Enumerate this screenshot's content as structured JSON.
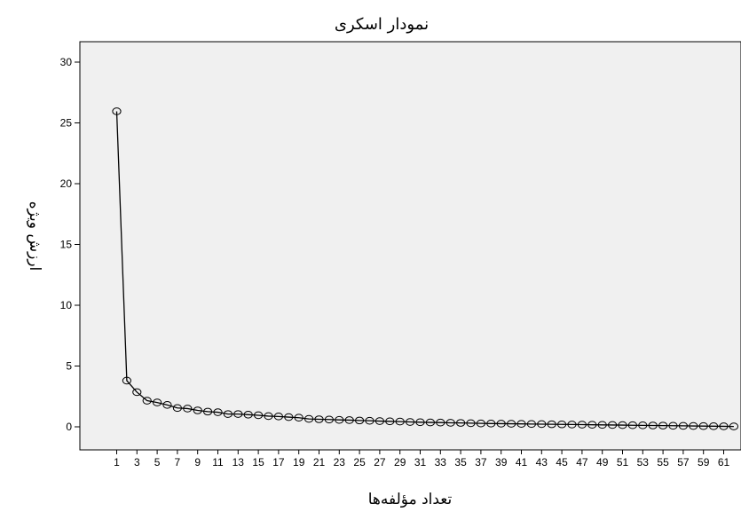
{
  "chart_data": {
    "type": "line",
    "title": "نمودار اسکری",
    "xlabel": "تعداد مؤلفه‌ها",
    "ylabel": "ارزش ویژه",
    "xlim": [
      0,
      63
    ],
    "ylim": [
      -1,
      31
    ],
    "x_ticks": [
      1,
      3,
      5,
      7,
      9,
      11,
      13,
      15,
      17,
      19,
      21,
      23,
      25,
      27,
      29,
      31,
      33,
      35,
      37,
      39,
      41,
      43,
      45,
      47,
      49,
      51,
      53,
      55,
      57,
      59,
      61
    ],
    "y_ticks": [
      0,
      5,
      10,
      15,
      20,
      25,
      30
    ],
    "grid": false,
    "plot_background": "#f0f0f0",
    "line_color": "#000000",
    "series": [
      {
        "x": [
          1,
          2,
          3,
          4,
          5,
          6,
          7,
          8,
          9,
          10,
          11,
          12,
          13,
          14,
          15,
          16,
          17,
          18,
          19,
          20,
          21,
          22,
          23,
          24,
          25,
          26,
          27,
          28,
          29,
          30,
          31,
          32,
          33,
          34,
          35,
          36,
          37,
          38,
          39,
          40,
          41,
          42,
          43,
          44,
          45,
          46,
          47,
          48,
          49,
          50,
          51,
          52,
          53,
          54,
          55,
          56,
          57,
          58,
          59,
          60,
          61,
          62
        ],
        "values": [
          25.95,
          3.8,
          2.85,
          2.15,
          2.0,
          1.8,
          1.55,
          1.5,
          1.35,
          1.25,
          1.2,
          1.05,
          1.05,
          1.0,
          0.95,
          0.88,
          0.85,
          0.8,
          0.75,
          0.65,
          0.62,
          0.6,
          0.57,
          0.55,
          0.52,
          0.5,
          0.47,
          0.45,
          0.43,
          0.4,
          0.38,
          0.36,
          0.35,
          0.33,
          0.32,
          0.3,
          0.28,
          0.27,
          0.26,
          0.25,
          0.24,
          0.23,
          0.22,
          0.21,
          0.2,
          0.19,
          0.18,
          0.17,
          0.16,
          0.15,
          0.14,
          0.13,
          0.12,
          0.11,
          0.1,
          0.09,
          0.08,
          0.07,
          0.06,
          0.05,
          0.04,
          0.03
        ]
      }
    ]
  }
}
